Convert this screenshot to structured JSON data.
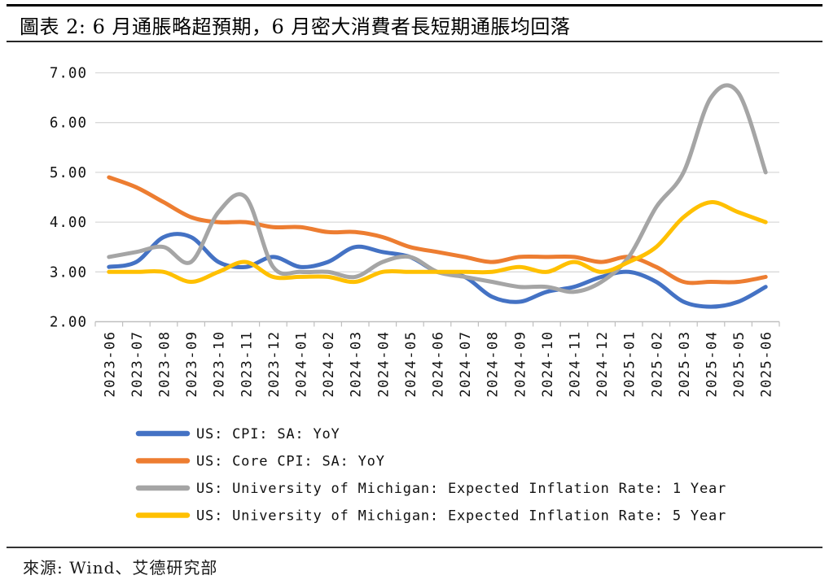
{
  "header": {
    "title": "圖表 2: 6 月通脹略超預期，6 月密大消費者長短期通脹均回落"
  },
  "footer": {
    "source": "來源: Wind、艾德研究部"
  },
  "chart_data": {
    "type": "line",
    "title": "圖表 2: 6 月通脹略超預期，6 月密大消費者長短期通脹均回落",
    "x": [
      "2023-06",
      "2023-07",
      "2023-08",
      "2023-09",
      "2023-10",
      "2023-11",
      "2023-12",
      "2024-01",
      "2024-02",
      "2024-03",
      "2024-04",
      "2024-05",
      "2024-06",
      "2024-07",
      "2024-08",
      "2024-09",
      "2024-10",
      "2024-11",
      "2024-12",
      "2025-01",
      "2025-02",
      "2025-03",
      "2025-04",
      "2025-05",
      "2025-06"
    ],
    "series": [
      {
        "name": "US: CPI: SA: YoY",
        "color": "#4472C4",
        "values": [
          3.1,
          3.2,
          3.7,
          3.7,
          3.2,
          3.1,
          3.3,
          3.1,
          3.2,
          3.5,
          3.4,
          3.3,
          3.0,
          2.9,
          2.5,
          2.4,
          2.6,
          2.7,
          2.9,
          3.0,
          2.8,
          2.4,
          2.3,
          2.4,
          2.7
        ]
      },
      {
        "name": "US: Core CPI: SA: YoY",
        "color": "#ED7D31",
        "values": [
          4.9,
          4.7,
          4.4,
          4.1,
          4.0,
          4.0,
          3.9,
          3.9,
          3.8,
          3.8,
          3.7,
          3.5,
          3.4,
          3.3,
          3.2,
          3.3,
          3.3,
          3.3,
          3.2,
          3.3,
          3.1,
          2.8,
          2.8,
          2.8,
          2.9
        ]
      },
      {
        "name": "US: University of Michigan: Expected Inflation Rate: 1 Year",
        "color": "#A5A5A5",
        "values": [
          3.3,
          3.4,
          3.5,
          3.2,
          4.2,
          4.5,
          3.1,
          3.0,
          3.0,
          2.9,
          3.2,
          3.3,
          3.0,
          2.9,
          2.8,
          2.7,
          2.7,
          2.6,
          2.8,
          3.3,
          4.3,
          5.0,
          6.5,
          6.6,
          5.0
        ]
      },
      {
        "name": "US: University of Michigan: Expected Inflation Rate: 5 Year",
        "color": "#FFC000",
        "values": [
          3.0,
          3.0,
          3.0,
          2.8,
          3.0,
          3.2,
          2.9,
          2.9,
          2.9,
          2.8,
          3.0,
          3.0,
          3.0,
          3.0,
          3.0,
          3.1,
          3.0,
          3.2,
          3.0,
          3.2,
          3.5,
          4.1,
          4.4,
          4.2,
          4.0
        ]
      }
    ],
    "ylim": [
      2,
      7
    ],
    "yticks": [
      "2.00",
      "3.00",
      "4.00",
      "5.00",
      "6.00",
      "7.00"
    ],
    "grid": true,
    "legend_position": "bottom",
    "gridline_color": "#D9D9D9",
    "axis_color": "#BFBFBF",
    "label_color": "#111111"
  }
}
